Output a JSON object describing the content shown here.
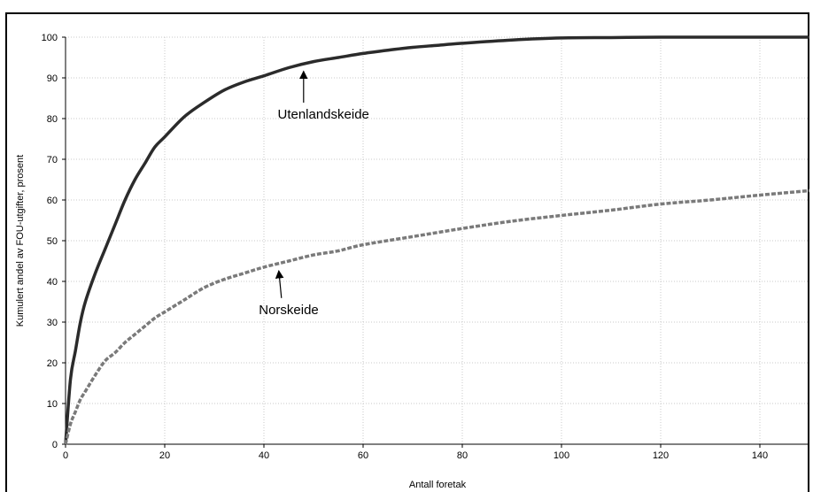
{
  "chart_data": {
    "type": "line",
    "title": "",
    "xlabel": "Antall foretak",
    "ylabel": "Kumulert andel av FOU-utgifter, prosent",
    "xlim": [
      0,
      150
    ],
    "ylim": [
      0,
      100
    ],
    "xticks": [
      0,
      20,
      40,
      60,
      80,
      100,
      120,
      140
    ],
    "yticks": [
      0,
      10,
      20,
      30,
      40,
      50,
      60,
      70,
      80,
      90,
      100
    ],
    "grid": true,
    "series": [
      {
        "name": "Utenlandskeide",
        "color": "#2b2b2b",
        "style": "solid",
        "x": [
          0,
          1,
          2,
          3,
          4,
          6,
          8,
          10,
          12,
          14,
          16,
          18,
          20,
          24,
          28,
          32,
          36,
          40,
          45,
          50,
          55,
          60,
          65,
          70,
          75,
          80,
          90,
          100,
          110,
          120,
          130,
          140,
          150
        ],
        "y": [
          0,
          16,
          23,
          30,
          35,
          42,
          48,
          54,
          60,
          65,
          69,
          73,
          75.5,
          80.5,
          84,
          87,
          89,
          90.5,
          92.5,
          94,
          95,
          96,
          96.8,
          97.5,
          98,
          98.5,
          99.3,
          99.8,
          99.9,
          100,
          100,
          100,
          100
        ]
      },
      {
        "name": "Norskeide",
        "color": "#7a7a7a",
        "style": "dashed",
        "x": [
          0,
          1,
          2,
          3,
          4,
          6,
          8,
          10,
          12,
          14,
          16,
          18,
          20,
          24,
          28,
          32,
          36,
          40,
          45,
          50,
          55,
          60,
          70,
          80,
          90,
          100,
          110,
          120,
          130,
          140,
          150
        ],
        "y": [
          0,
          5,
          8,
          11,
          13,
          17,
          20.5,
          22.5,
          25,
          27,
          29,
          31,
          32.5,
          35.5,
          38.5,
          40.5,
          42,
          43.5,
          45,
          46.5,
          47.5,
          49,
          51,
          53,
          54.8,
          56.2,
          57.5,
          59,
          60,
          61.2,
          62.3
        ]
      }
    ],
    "annotations": [
      {
        "text": "Utenlandskeide",
        "target": [
          48,
          92.5
        ],
        "label_at": [
          52,
          80
        ]
      },
      {
        "text": "Norskeide",
        "target": [
          43,
          43.5
        ],
        "label_at": [
          45,
          32
        ]
      }
    ]
  }
}
